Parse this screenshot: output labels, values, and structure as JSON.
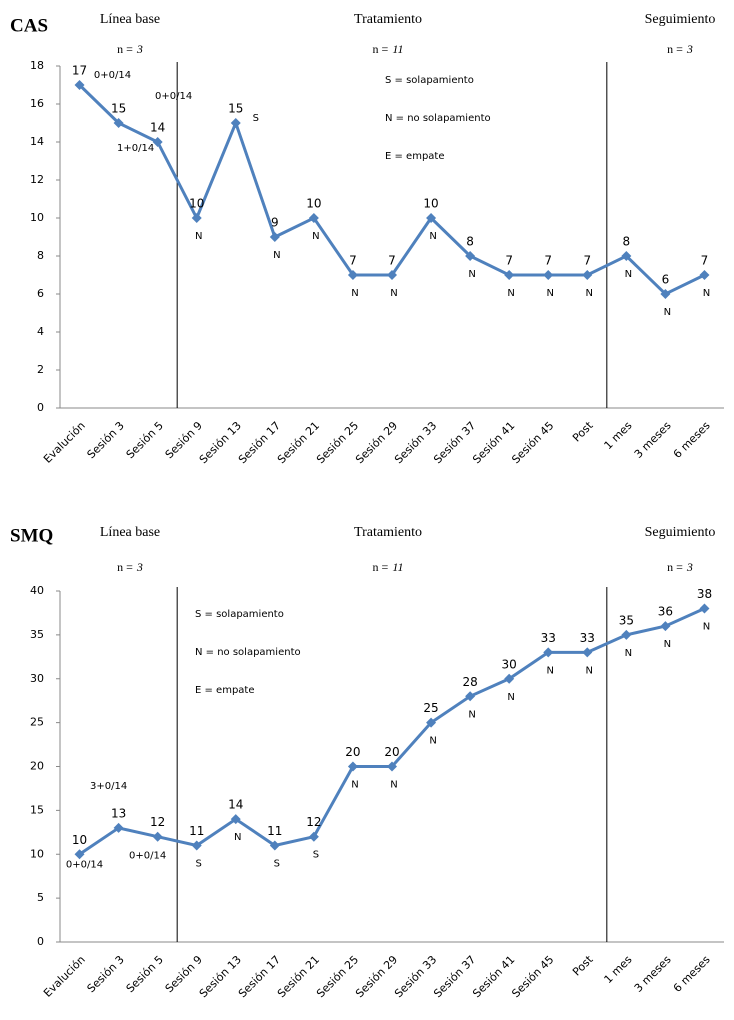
{
  "chart_data": [
    {
      "type": "line",
      "title": "CAS",
      "color": "#4f81bd",
      "phases": [
        {
          "label": "Línea base",
          "n_label": "n =",
          "n": 3
        },
        {
          "label": "Tratamiento",
          "n_label": "n =",
          "n": 11
        },
        {
          "label": "Seguimiento",
          "n_label": "n =",
          "n": 3
        }
      ],
      "notes": [
        "S = solapamiento",
        "N = no solapamiento",
        "E = empate"
      ],
      "categories": [
        "Evalución",
        "Sesión 3",
        "Sesión 5",
        "Sesión 9",
        "Sesión 13",
        "Sesión 17",
        "Sesión 21",
        "Sesión 25",
        "Sesión 29",
        "Sesión 33",
        "Sesión 37",
        "Sesión 41",
        "Sesión 45",
        "Post",
        "1 mes",
        "3 meses",
        "6 meses"
      ],
      "values": [
        17,
        15,
        14,
        10,
        15,
        9,
        10,
        7,
        7,
        10,
        8,
        7,
        7,
        7,
        8,
        6,
        7
      ],
      "point_notes": [
        "0+0/14",
        "1+0/14",
        "0+0/14",
        "N",
        "S",
        "N",
        "N",
        "N",
        "N",
        "N",
        "N",
        "N",
        "N",
        "N",
        "N",
        "N",
        "N"
      ],
      "ylim": [
        0,
        18
      ],
      "yticks": [
        0,
        2,
        4,
        6,
        8,
        10,
        12,
        14,
        16,
        18
      ]
    },
    {
      "type": "line",
      "title": "SMQ",
      "color": "#4f81bd",
      "phases": [
        {
          "label": "Línea base",
          "n_label": "n =",
          "n": 3
        },
        {
          "label": "Tratamiento",
          "n_label": "n =",
          "n": 11
        },
        {
          "label": "Seguimiento",
          "n_label": "n =",
          "n": 3
        }
      ],
      "notes": [
        "S = solapamiento",
        "N = no solapamiento",
        "E = empate"
      ],
      "categories": [
        "Evalución",
        "Sesión 3",
        "Sesión 5",
        "Sesión 9",
        "Sesión 13",
        "Sesión 17",
        "Sesión 21",
        "Sesión 25",
        "Sesión 29",
        "Sesión 33",
        "Sesión 37",
        "Sesión 41",
        "Sesión 45",
        "Post",
        "1 mes",
        "3 meses",
        "6 meses"
      ],
      "values": [
        10,
        13,
        12,
        11,
        14,
        11,
        12,
        20,
        20,
        25,
        28,
        30,
        33,
        33,
        35,
        36,
        38
      ],
      "point_notes": [
        "0+0/14",
        "3+0/14",
        "0+0/14",
        "S",
        "N",
        "S",
        "S",
        "N",
        "N",
        "N",
        "N",
        "N",
        "N",
        "N",
        "N",
        "N",
        "N"
      ],
      "ylim": [
        0,
        40
      ],
      "yticks": [
        0,
        5,
        10,
        15,
        20,
        25,
        30,
        35,
        40
      ]
    }
  ]
}
